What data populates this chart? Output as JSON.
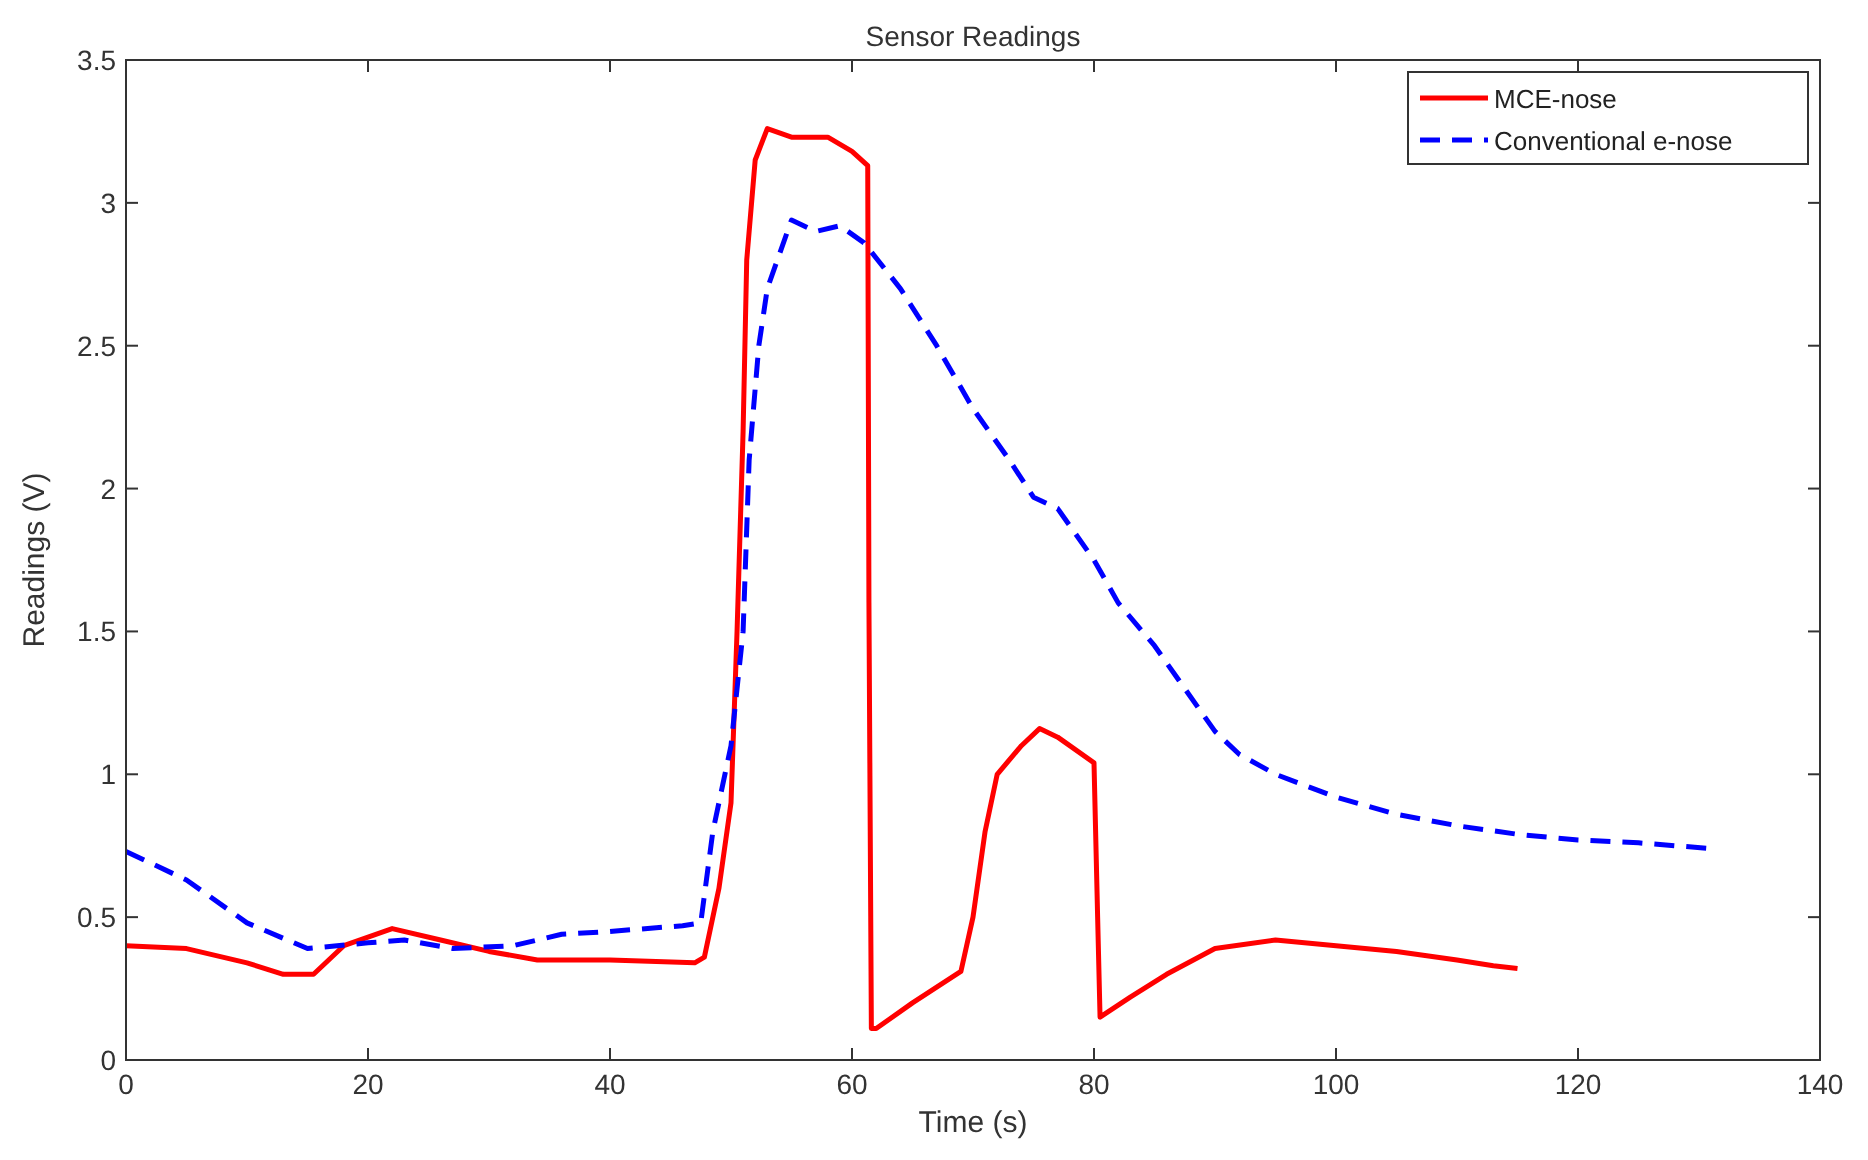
{
  "chart_data": {
    "type": "line",
    "title": "Sensor Readings",
    "xlabel": "Time (s)",
    "ylabel": "Readings (V)",
    "xlim": [
      0,
      140
    ],
    "xticks": [
      0,
      20,
      40,
      60,
      80,
      100,
      120,
      140
    ],
    "ylim": [
      0,
      3.5
    ],
    "yticks": [
      0,
      0.5,
      1,
      1.5,
      2,
      2.5,
      3,
      3.5
    ],
    "grid": false,
    "legend": "top right",
    "series": [
      {
        "name": "MCE-nose",
        "color": "#ff0000",
        "line_style": "solid",
        "x": [
          0,
          5,
          10,
          13,
          15.5,
          18,
          22,
          26,
          30,
          34,
          40,
          47,
          47.8,
          49,
          50,
          50.5,
          51,
          51.3,
          52,
          53,
          55,
          58,
          60,
          61.3,
          61.4,
          61.6,
          62,
          65,
          69,
          70,
          71,
          72,
          74,
          75.5,
          77,
          80,
          80.3,
          80.5,
          83,
          86,
          90,
          95,
          100,
          105,
          110,
          113,
          115
        ],
        "values": [
          0.4,
          0.39,
          0.34,
          0.3,
          0.3,
          0.4,
          0.46,
          0.42,
          0.38,
          0.35,
          0.35,
          0.34,
          0.36,
          0.6,
          0.9,
          1.5,
          2.2,
          2.8,
          3.15,
          3.26,
          3.23,
          3.23,
          3.18,
          3.13,
          1.6,
          0.11,
          0.11,
          0.2,
          0.31,
          0.5,
          0.8,
          1.0,
          1.1,
          1.16,
          1.13,
          1.04,
          0.5,
          0.15,
          0.22,
          0.3,
          0.39,
          0.42,
          0.4,
          0.38,
          0.35,
          0.33,
          0.32
        ]
      },
      {
        "name": "Conventional e-nose",
        "color": "#0000ff",
        "line_style": "dashed",
        "x": [
          0,
          5,
          10,
          15,
          20,
          23,
          27,
          32,
          36,
          40,
          46,
          47.5,
          48.5,
          50,
          51,
          51.5,
          52.3,
          53,
          55,
          57,
          59,
          61,
          64,
          67,
          70,
          73,
          75,
          77,
          80,
          82,
          85,
          87,
          90,
          92,
          95,
          100,
          105,
          110,
          115,
          120,
          125,
          131
        ],
        "values": [
          0.73,
          0.63,
          0.48,
          0.39,
          0.41,
          0.42,
          0.39,
          0.4,
          0.44,
          0.45,
          0.47,
          0.48,
          0.8,
          1.1,
          1.5,
          2.1,
          2.5,
          2.7,
          2.94,
          2.9,
          2.92,
          2.86,
          2.7,
          2.5,
          2.28,
          2.1,
          1.97,
          1.93,
          1.75,
          1.6,
          1.45,
          1.33,
          1.15,
          1.07,
          1.0,
          0.92,
          0.86,
          0.82,
          0.79,
          0.77,
          0.76,
          0.74
        ]
      }
    ]
  }
}
